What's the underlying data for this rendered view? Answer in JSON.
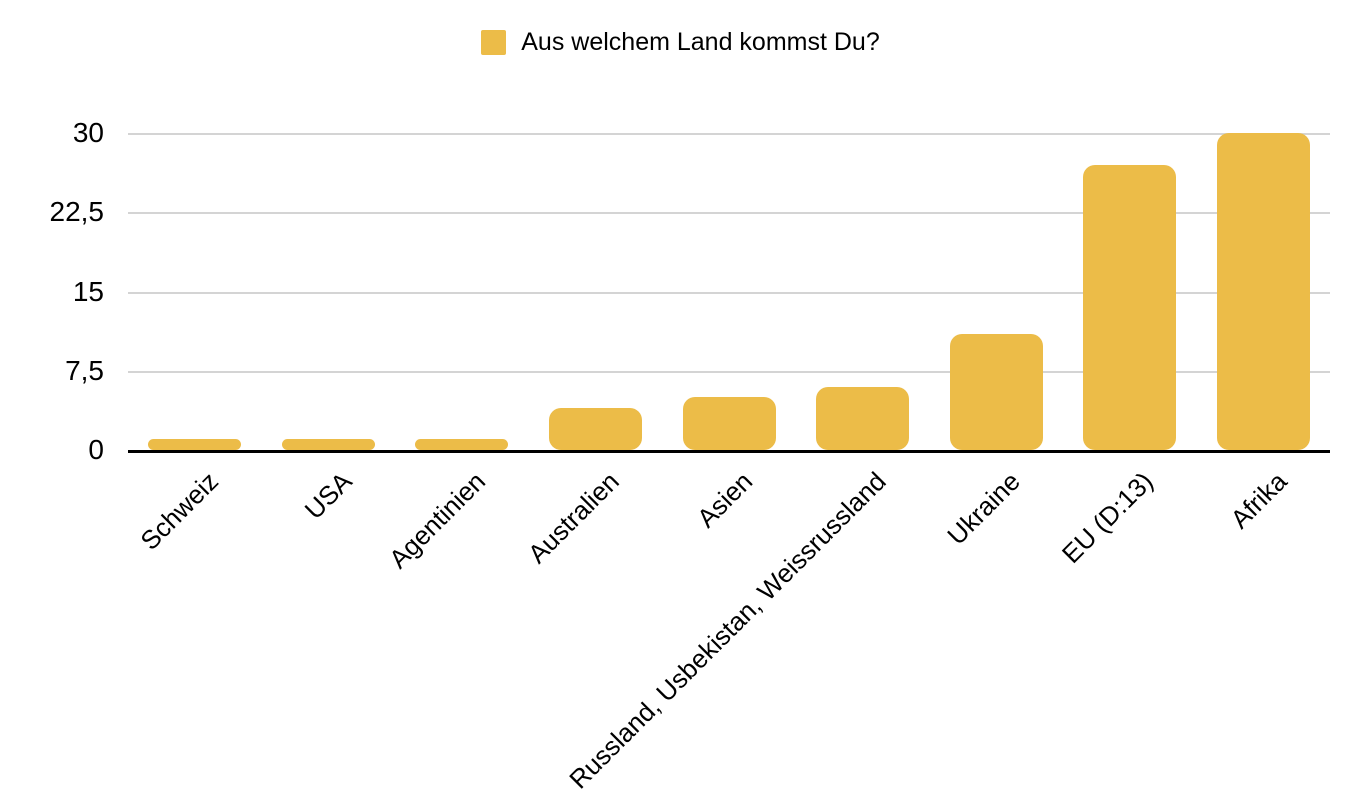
{
  "chart_data": {
    "type": "bar",
    "title": "Aus welchem Land kommst Du?",
    "legend": {
      "label": "Aus welchem Land kommst Du?",
      "swatch_color": "#ECBC48",
      "position": "top-center"
    },
    "categories": [
      "Schweiz",
      "USA",
      "Agentinien",
      "Australien",
      "Asien",
      "Russland, Usbekistan, Weissrussland",
      "Ukraine",
      "EU (D:13)",
      "Afrika"
    ],
    "values": [
      1,
      1,
      1,
      4,
      5,
      6,
      11,
      27,
      30
    ],
    "bar_color": "#ECBC48",
    "xlabel": "",
    "ylabel": "",
    "ylim": [
      0,
      30
    ],
    "yticks": [
      {
        "value": 0,
        "label": "0"
      },
      {
        "value": 7.5,
        "label": "7,5"
      },
      {
        "value": 15,
        "label": "15"
      },
      {
        "value": 22.5,
        "label": "22,5"
      },
      {
        "value": 30,
        "label": "30"
      }
    ],
    "grid": true,
    "gridline_color": "#d4d4d4",
    "axis_line_color": "#000000",
    "x_label_rotation_deg": -45
  }
}
